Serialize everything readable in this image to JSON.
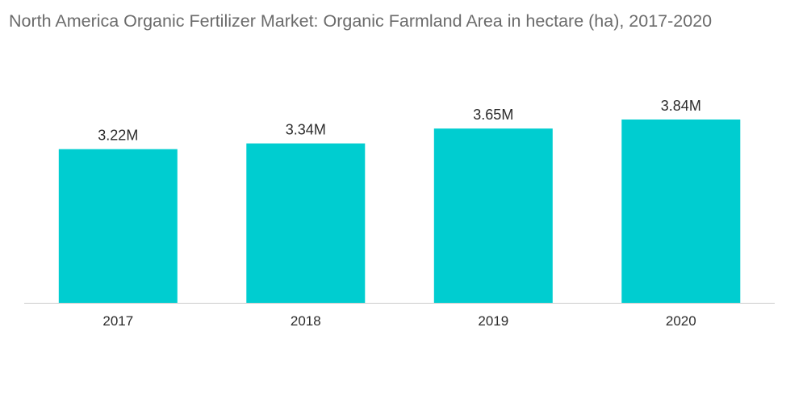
{
  "chart_data": {
    "type": "bar",
    "title": "North America Organic Fertilizer Market: Organic Farmland Area in hectare (ha), 2017-2020",
    "categories": [
      "2017",
      "2018",
      "2019",
      "2020"
    ],
    "values": [
      3.22,
      3.34,
      3.65,
      3.84
    ],
    "data_labels": [
      "3.22M",
      "3.34M",
      "3.65M",
      "3.84M"
    ],
    "value_unit": "M",
    "xlabel": "",
    "ylabel": "",
    "ylim": [
      0,
      3.84
    ],
    "grid": false,
    "legend": "none",
    "bar_color": "#00CDD0",
    "axis_color": "#cccccc",
    "title_color": "#6b6b6b",
    "text_color": "#2b2b2b"
  }
}
